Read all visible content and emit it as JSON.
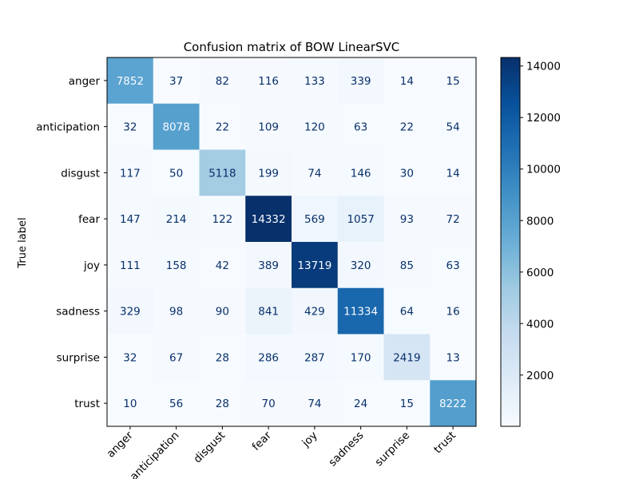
{
  "chart_data": {
    "type": "heatmap",
    "title": "Confusion matrix of BOW LinearSVC",
    "ylabel": "True label",
    "xlabel": "",
    "row_labels": [
      "anger",
      "anticipation",
      "disgust",
      "fear",
      "joy",
      "sadness",
      "surprise",
      "trust"
    ],
    "col_labels": [
      "anger",
      "anticipation",
      "disgust",
      "fear",
      "joy",
      "sadness",
      "surprise",
      "trust"
    ],
    "values": [
      [
        7852,
        37,
        82,
        116,
        133,
        339,
        14,
        15
      ],
      [
        32,
        8078,
        22,
        109,
        120,
        63,
        22,
        54
      ],
      [
        117,
        50,
        5118,
        199,
        74,
        146,
        30,
        14
      ],
      [
        147,
        214,
        122,
        14332,
        569,
        1057,
        93,
        72
      ],
      [
        111,
        158,
        42,
        389,
        13719,
        320,
        85,
        63
      ],
      [
        329,
        98,
        90,
        841,
        429,
        11334,
        64,
        16
      ],
      [
        32,
        67,
        28,
        286,
        287,
        170,
        2419,
        13
      ],
      [
        10,
        56,
        28,
        70,
        74,
        24,
        15,
        8222
      ]
    ],
    "colormap": "Blues",
    "colorbar": {
      "min": 10,
      "max": 14332,
      "ticks": [
        2000,
        4000,
        6000,
        8000,
        10000,
        12000,
        14000
      ]
    },
    "grid": false
  }
}
